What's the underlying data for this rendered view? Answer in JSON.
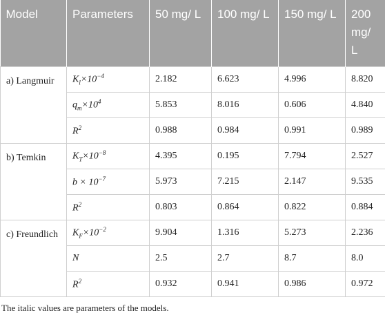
{
  "table": {
    "header": [
      "Model",
      "Parameters",
      "50 mg/ L",
      "100 mg/ L",
      "150 mg/ L",
      "200 mg/ L"
    ],
    "groups": [
      {
        "model": "a) Langmuir",
        "rows": [
          {
            "parameter": {
              "main": "K",
              "sub": "l",
              "rest": "×10",
              "sup": "−4"
            },
            "values": [
              "2.182",
              "6.623",
              "4.996",
              "8.820"
            ]
          },
          {
            "parameter": {
              "main": "q",
              "sub": "m",
              "rest": "×10",
              "sup": "4"
            },
            "values": [
              "5.853",
              "8.016",
              "0.606",
              "4.840"
            ]
          },
          {
            "parameter": {
              "main": "R",
              "sup": "2"
            },
            "values": [
              "0.988",
              "0.984",
              "0.991",
              "0.989"
            ]
          }
        ]
      },
      {
        "model": "b) Temkin",
        "rows": [
          {
            "parameter": {
              "main": "K",
              "sub": "T",
              "rest": "×10",
              "sup": "−8"
            },
            "values": [
              "4.395",
              "0.195",
              "7.794",
              "2.527"
            ]
          },
          {
            "parameter": {
              "main": "b × 10",
              "sup": "−7"
            },
            "values": [
              "5.973",
              "7.215",
              "2.147",
              "9.535"
            ]
          },
          {
            "parameter": {
              "main": "R",
              "sup": "2"
            },
            "values": [
              "0.803",
              "0.864",
              "0.822",
              "0.884"
            ]
          }
        ]
      },
      {
        "model": "c) Freundlich",
        "rows": [
          {
            "parameter": {
              "main": "K",
              "sub": "F",
              "rest": "×10",
              "sup": "−2"
            },
            "values": [
              "9.904",
              "1.316",
              "5.273",
              "2.236"
            ]
          },
          {
            "parameter": {
              "main": "N"
            },
            "values": [
              "2.5",
              "2.7",
              "8.7",
              "8.0"
            ]
          },
          {
            "parameter": {
              "main": "R",
              "sup": "2"
            },
            "values": [
              "0.932",
              "0.941",
              "0.986",
              "0.972"
            ]
          }
        ]
      }
    ]
  },
  "footnote": "The italic values are parameters of the models."
}
